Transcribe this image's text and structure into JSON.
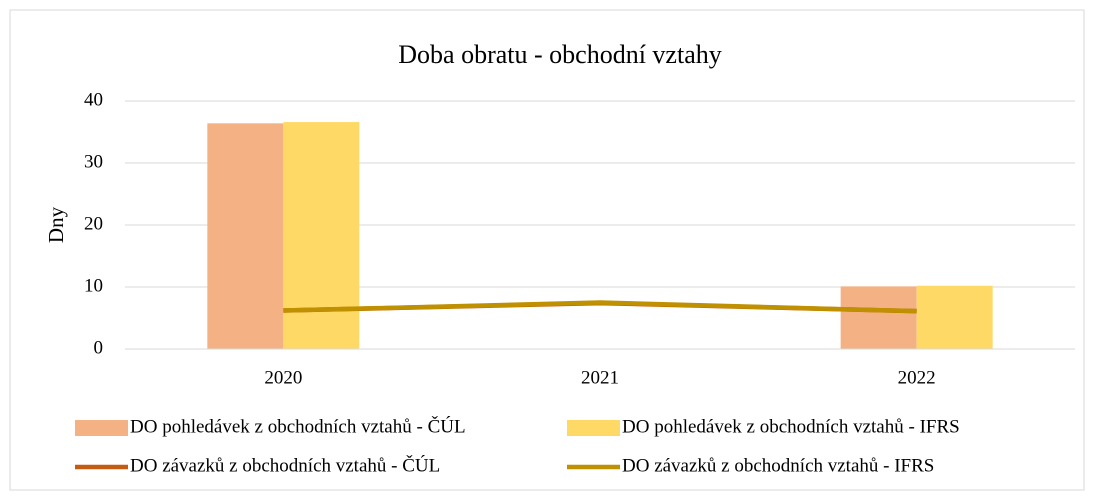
{
  "chart_data": {
    "type": "bar",
    "title": "Doba obratu - obchodní vztahy",
    "y_label": "Dny",
    "categories": [
      "2020",
      "2021",
      "2022"
    ],
    "series": [
      {
        "name": "DO pohledávek z obchodních vztahů - ČÚL",
        "type": "bar",
        "color": "#f4b183",
        "values": [
          36.4,
          0,
          10.1
        ]
      },
      {
        "name": "DO pohledávek z obchodních vztahů - IFRS",
        "type": "bar",
        "color": "#ffd966",
        "values": [
          36.6,
          0,
          10.2
        ]
      },
      {
        "name": "DO závazků z obchodních vztahů - ČÚL",
        "type": "line",
        "color": "#c55a11",
        "values": [
          6.2,
          7.4,
          6.1
        ]
      },
      {
        "name": "DO závazků z obchodních vztahů - IFRS",
        "type": "line",
        "color": "#bf9000",
        "values": [
          6.2,
          7.5,
          6.1
        ]
      }
    ],
    "ylim": [
      0,
      40
    ],
    "yticks": [
      0,
      10,
      20,
      30,
      40
    ],
    "grid": true
  }
}
